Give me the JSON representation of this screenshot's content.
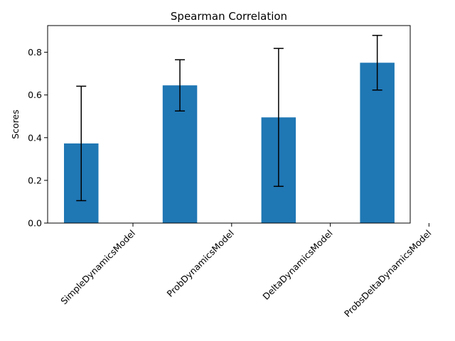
{
  "chart_data": {
    "type": "bar",
    "title": "Spearman Correlation",
    "xlabel": "",
    "ylabel": "Scores",
    "categories": [
      "SimpleDynamicsModel",
      "ProbDynamicsModel",
      "DeltaDynamicsModel",
      "ProbsDeltaDynamicsModel"
    ],
    "values": [
      0.373,
      0.645,
      0.495,
      0.751
    ],
    "errors": [
      0.268,
      0.12,
      0.323,
      0.128
    ],
    "ylim": [
      0,
      0.925
    ],
    "yticks": [
      "0.0",
      "0.2",
      "0.4",
      "0.6",
      "0.8"
    ],
    "bar_color": "#1f77b4",
    "error_color": "#000000",
    "grid": false,
    "legend": "none"
  }
}
